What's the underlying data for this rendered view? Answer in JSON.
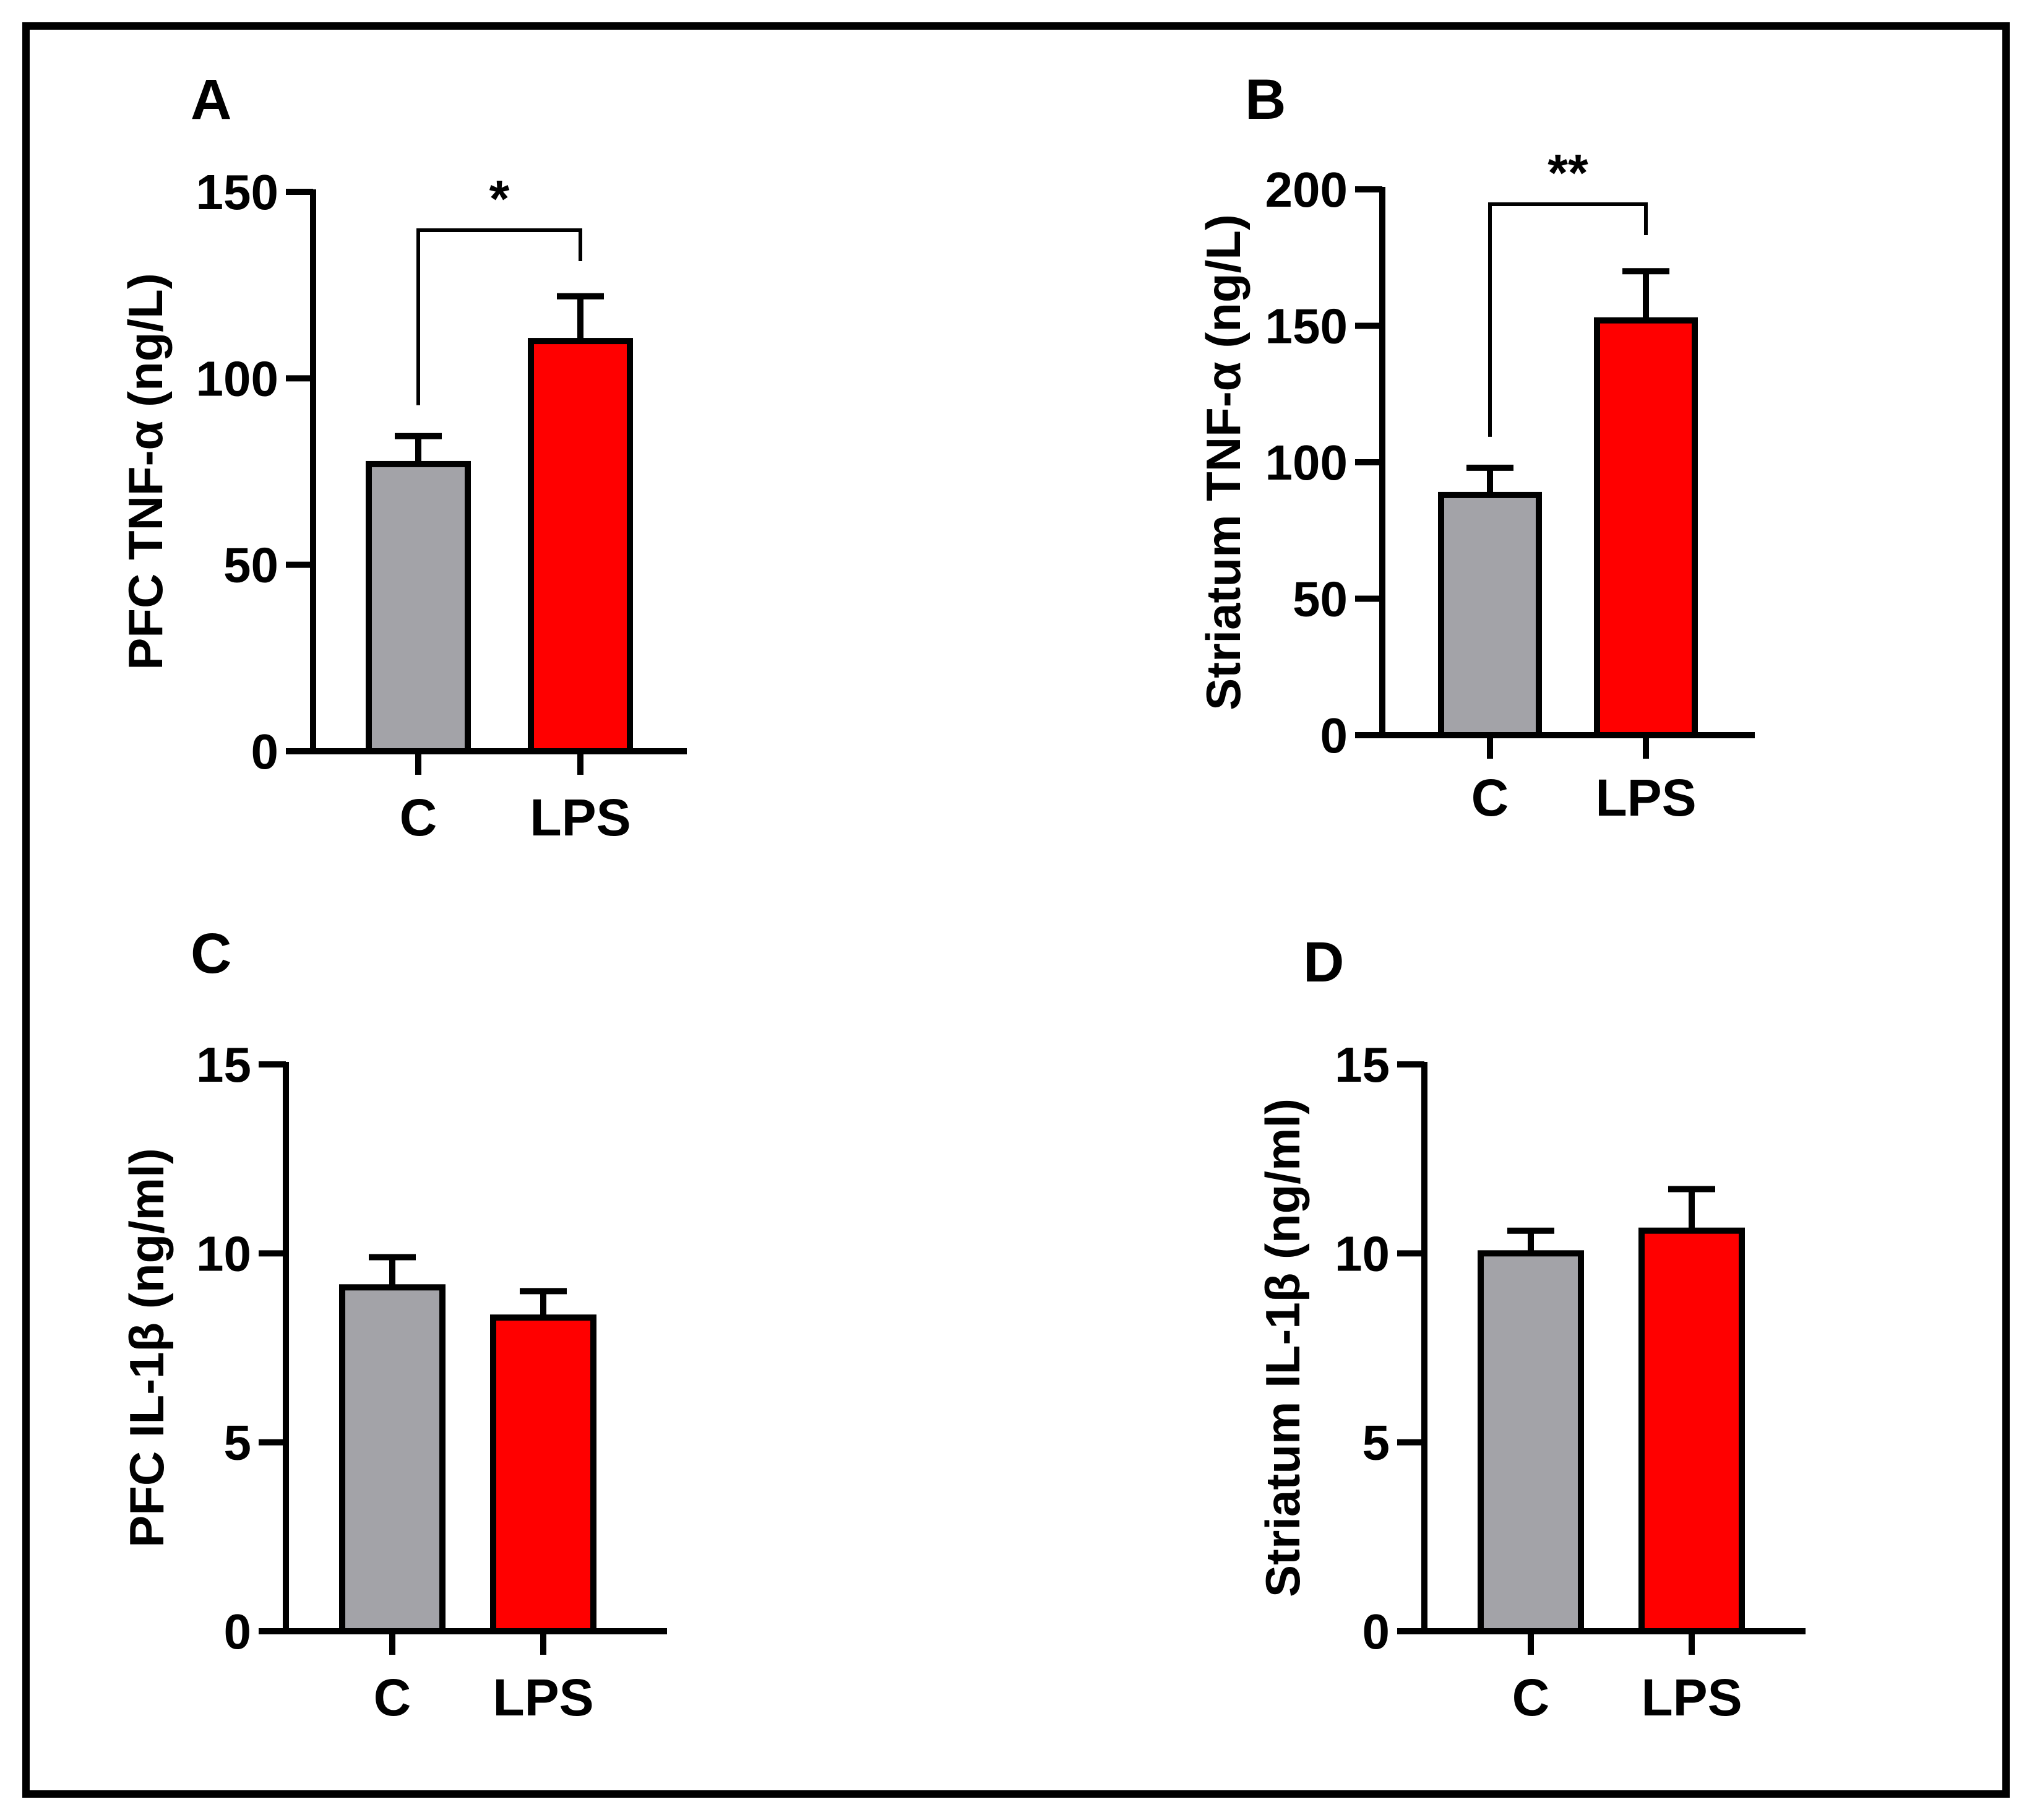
{
  "colors": {
    "control_bar": "#a3a3a8",
    "lps_bar": "#ff0000",
    "outline": "#000000",
    "background": "#ffffff"
  },
  "chart_data": [
    {
      "panel": "A",
      "type": "bar",
      "ylabel": "PFC TNF-α (ng/L)",
      "xlabel": "",
      "categories": [
        "C",
        "LPS"
      ],
      "values": [
        77,
        110
      ],
      "errors": [
        7.5,
        12
      ],
      "ylim": [
        0,
        150
      ],
      "yticks": [
        0,
        50,
        100,
        150
      ],
      "significance": {
        "between": [
          "C",
          "LPS"
        ],
        "label": "*"
      }
    },
    {
      "panel": "B",
      "type": "bar",
      "ylabel": "Striatum TNF-α (ng/L)",
      "xlabel": "",
      "categories": [
        "C",
        "LPS"
      ],
      "values": [
        88,
        152
      ],
      "errors": [
        10,
        18
      ],
      "ylim": [
        0,
        200
      ],
      "yticks": [
        0,
        50,
        100,
        150,
        200
      ],
      "significance": {
        "between": [
          "C",
          "LPS"
        ],
        "label": "**"
      }
    },
    {
      "panel": "C",
      "type": "bar",
      "ylabel": "PFC IL-1β (ng/ml)",
      "xlabel": "",
      "categories": [
        "C",
        "LPS"
      ],
      "values": [
        9.1,
        8.3
      ],
      "errors": [
        0.8,
        0.7
      ],
      "ylim": [
        0,
        15
      ],
      "yticks": [
        0,
        5,
        10,
        15
      ],
      "significance": null
    },
    {
      "panel": "D",
      "type": "bar",
      "ylabel": "Striatum IL-1β (ng/ml)",
      "xlabel": "",
      "categories": [
        "C",
        "LPS"
      ],
      "values": [
        10.0,
        10.6
      ],
      "errors": [
        0.6,
        1.1
      ],
      "ylim": [
        0,
        15
      ],
      "yticks": [
        0,
        5,
        10,
        15
      ],
      "significance": null
    }
  ]
}
